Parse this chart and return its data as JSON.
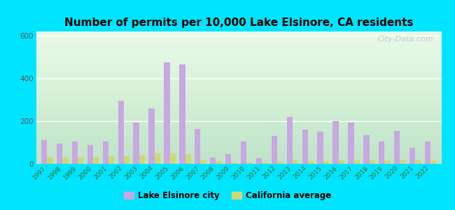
{
  "years": [
    1997,
    1998,
    1999,
    2000,
    2001,
    2002,
    2003,
    2004,
    2005,
    2006,
    2007,
    2008,
    2009,
    2010,
    2011,
    2012,
    2013,
    2014,
    2015,
    2016,
    2017,
    2018,
    2019,
    2020,
    2021,
    2022
  ],
  "lake_elsinore": [
    110,
    95,
    105,
    90,
    105,
    295,
    195,
    260,
    475,
    465,
    165,
    30,
    45,
    105,
    25,
    130,
    220,
    160,
    150,
    200,
    195,
    135,
    105,
    155,
    75,
    105
  ],
  "california_avg": [
    28,
    30,
    28,
    30,
    35,
    35,
    38,
    48,
    50,
    47,
    15,
    12,
    8,
    8,
    7,
    10,
    15,
    12,
    12,
    15,
    18,
    18,
    18,
    18,
    18,
    18
  ],
  "bar_color_city": "#c8a8e0",
  "bar_color_ca": "#ccd97a",
  "title": "Number of permits per 10,000 Lake Elsinore, CA residents",
  "bg_outer": "#00e5ff",
  "bg_plot_top": "#f5fff5",
  "bg_plot_bottom": "#d8eec8",
  "ylim": [
    0,
    620
  ],
  "yticks": [
    0,
    200,
    400,
    600
  ],
  "legend_city": "Lake Elsinore city",
  "legend_ca": "California average",
  "watermark": "City-Data.com"
}
